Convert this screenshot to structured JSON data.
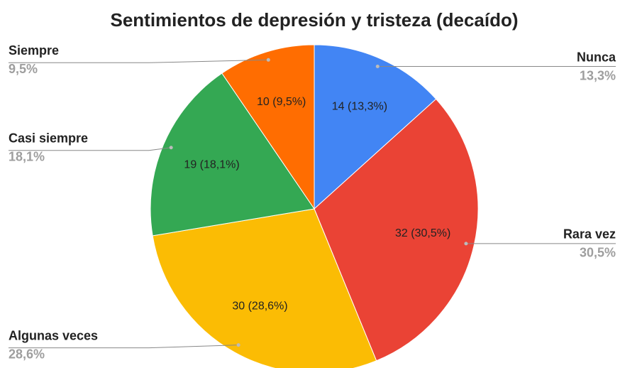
{
  "chart_data": {
    "type": "pie",
    "title": "Sentimientos de depresión y tristeza (decaído)",
    "categories": [
      "Nunca",
      "Rara vez",
      "Algunas veces",
      "Casi siempre",
      "Siempre"
    ],
    "values": [
      14,
      32,
      30,
      19,
      10
    ],
    "value_labels": [
      "14 (13,3%)",
      "32 (30,5%)",
      "30 (28,6%)",
      "19 (18,1%)",
      "10 (9,5%)"
    ],
    "percent_labels": [
      "13,3%",
      "30,5%",
      "28,6%",
      "18,1%",
      "9,5%"
    ],
    "colors": [
      "#4285f4",
      "#ea4335",
      "#fbbc04",
      "#34a853",
      "#ff6d01"
    ]
  }
}
